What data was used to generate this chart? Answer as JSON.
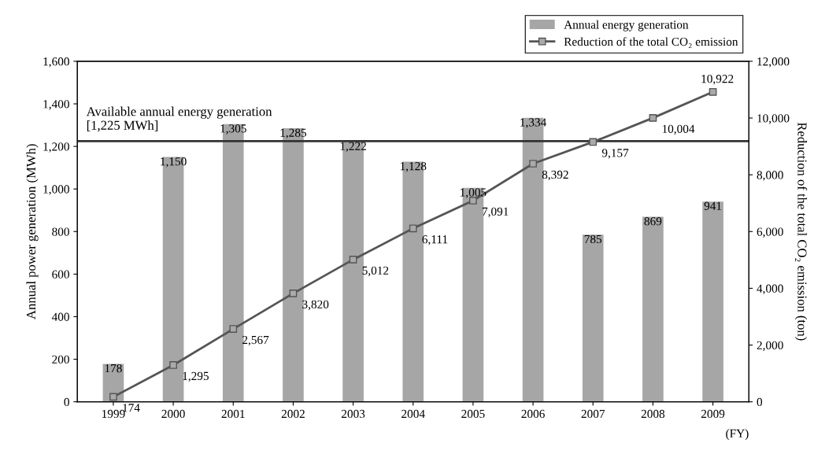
{
  "chart_data": {
    "type": "bar",
    "categories": [
      "1999",
      "2000",
      "2001",
      "2002",
      "2003",
      "2004",
      "2005",
      "2006",
      "2007",
      "2008",
      "2009"
    ],
    "series": [
      {
        "name": "Annual energy generation",
        "color": "#a6a6a6",
        "values": [
          178,
          1150,
          1305,
          1285,
          1222,
          1128,
          1005,
          1334,
          785,
          869,
          941
        ],
        "value_labels": [
          "178",
          "1,150",
          "1,305",
          "1,285",
          "1,222",
          "1,128",
          "1,005",
          "1,334",
          "785",
          "869",
          "941"
        ]
      },
      {
        "name": "Reduction of the total CO₂ emission",
        "type": "line",
        "axis": "y2",
        "color": "#555555",
        "values": [
          174,
          1295,
          2567,
          3820,
          5012,
          6111,
          7091,
          8392,
          9157,
          10004,
          10922
        ],
        "value_labels": [
          "174",
          "1,295",
          "2,567",
          "3,820",
          "5,012",
          "6,111",
          "7,091",
          "8,392",
          "9,157",
          "10,004",
          "10,922"
        ]
      }
    ],
    "xlabel": "(FY)",
    "ylabel": "Annual power generation (MWh)",
    "y2label": "Reduction of the total CO₂ emission (ton)",
    "ylim": [
      0,
      1600
    ],
    "yticks": [
      0,
      200,
      400,
      600,
      800,
      {
        "value": 1000,
        "label": "1,000"
      },
      {
        "value": 1200,
        "label": "1,200"
      },
      {
        "value": 1400,
        "label": "1,400"
      },
      {
        "value": 1600,
        "label": "1,600"
      }
    ],
    "y2lim": [
      0,
      12000
    ],
    "y2ticks": [
      0,
      {
        "value": 2000,
        "label": "2,000"
      },
      {
        "value": 4000,
        "label": "4,000"
      },
      {
        "value": 6000,
        "label": "6,000"
      },
      {
        "value": 8000,
        "label": "8,000"
      },
      {
        "value": 10000,
        "label": "10,000"
      },
      {
        "value": 12000,
        "label": "12,000"
      }
    ],
    "ref_lines": [
      {
        "axis": "y",
        "value": 1225,
        "label": "Available annual energy generation\n[1,225 MWh]",
        "color": "#333333",
        "line_style": "solid"
      }
    ],
    "marker": "square",
    "line_style": "solid",
    "legend": "top right",
    "grid": false
  }
}
